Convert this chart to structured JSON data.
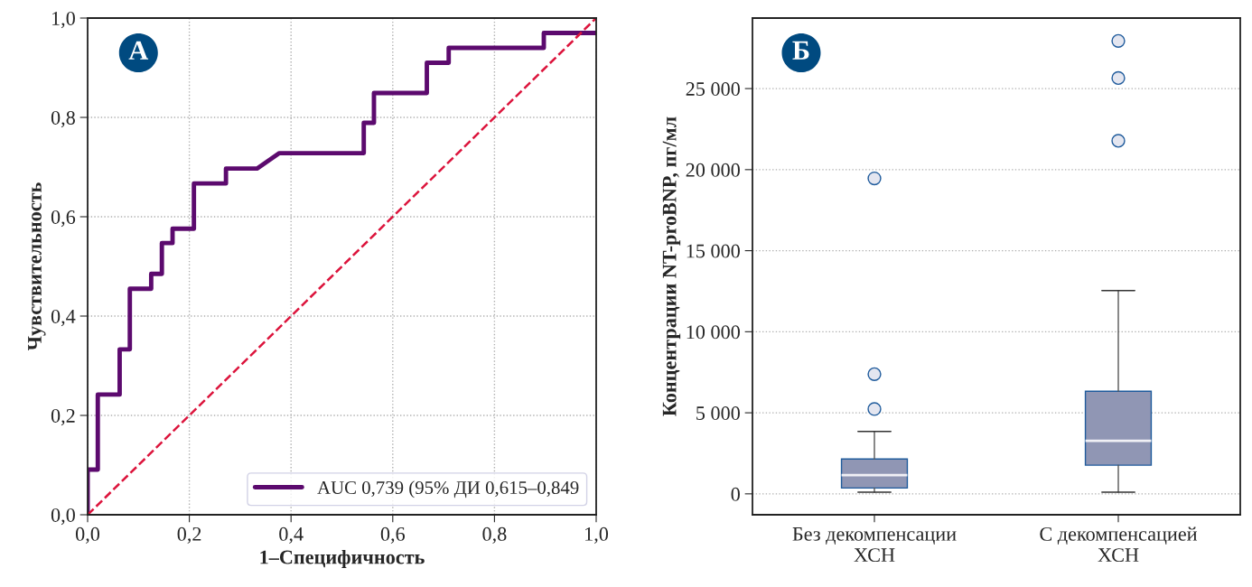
{
  "chart_data": [
    {
      "type": "line",
      "xlabel": "1–Специфичность",
      "ylabel": "Чувствительность",
      "annotations": [
        "А"
      ],
      "series": [
        {
          "name": "AUC 0,739 (95% ДИ 0,615–0,849",
          "color": "#5c0a6e",
          "line_style": "solid",
          "type": "step",
          "x": [
            0,
            0,
            0.02,
            0.02,
            0.063,
            0.063,
            0.083,
            0.083,
            0.125,
            0.125,
            0.146,
            0.146,
            0.167,
            0.167,
            0.209,
            0.209,
            0.272,
            0.272,
            0.333,
            0.377,
            0.543,
            0.543,
            0.563,
            0.563,
            0.667,
            0.667,
            0.71,
            0.71,
            0.897,
            0.897,
            1.0
          ],
          "values": [
            0,
            0.091,
            0.091,
            0.242,
            0.242,
            0.333,
            0.333,
            0.455,
            0.455,
            0.485,
            0.485,
            0.547,
            0.547,
            0.576,
            0.576,
            0.667,
            0.667,
            0.697,
            0.697,
            0.728,
            0.728,
            0.789,
            0.789,
            0.849,
            0.849,
            0.91,
            0.91,
            0.94,
            0.94,
            0.97,
            0.97
          ]
        },
        {
          "color": "#dc143c",
          "line_style": "dashed",
          "type": "line",
          "x": [
            0,
            1
          ],
          "values": [
            0,
            1
          ]
        }
      ],
      "xlim": [
        0,
        1
      ],
      "ylim": [
        0,
        1
      ],
      "xticks": [
        {
          "value": 0,
          "label": "0,0"
        },
        {
          "value": 0.2,
          "label": "0,2"
        },
        {
          "value": 0.4,
          "label": "0,4"
        },
        {
          "value": 0.6,
          "label": "0,6"
        },
        {
          "value": 0.8,
          "label": "0,8"
        },
        {
          "value": 1,
          "label": "1,0"
        }
      ],
      "yticks": [
        {
          "value": 0,
          "label": "0,0"
        },
        {
          "value": 0.2,
          "label": "0,2"
        },
        {
          "value": 0.4,
          "label": "0,4"
        },
        {
          "value": 0.6,
          "label": "0,6"
        },
        {
          "value": 0.8,
          "label": "0,8"
        },
        {
          "value": 1,
          "label": "1,0"
        }
      ],
      "grid": true,
      "legend": "bottom right"
    },
    {
      "type": "box",
      "ylabel": "Концентрации NT-proBNP, пг/мл",
      "annotations": [
        "Б"
      ],
      "categories": [
        "Без декомпенсации\nХСН",
        "С декомпенсацией\nХСН"
      ],
      "color": "#9096b4",
      "boxes": [
        {
          "low": 100,
          "q1": 360,
          "median": 1150,
          "q3": 2150,
          "high": 3850,
          "outliers": [
            5230,
            7380,
            19460
          ]
        },
        {
          "low": 100,
          "q1": 1770,
          "median": 3270,
          "q3": 6330,
          "high": 12540,
          "outliers": [
            21780,
            25650,
            27940
          ]
        }
      ],
      "ylim": [
        -1290,
        29350
      ],
      "yticks": [
        0,
        {
          "value": 5000,
          "label": "5 000"
        },
        {
          "value": 10000,
          "label": "10 000"
        },
        {
          "value": 15000,
          "label": "15 000"
        },
        {
          "value": 20000,
          "label": "20 000"
        },
        {
          "value": 25000,
          "label": "25 000"
        }
      ],
      "grid": "y"
    }
  ]
}
